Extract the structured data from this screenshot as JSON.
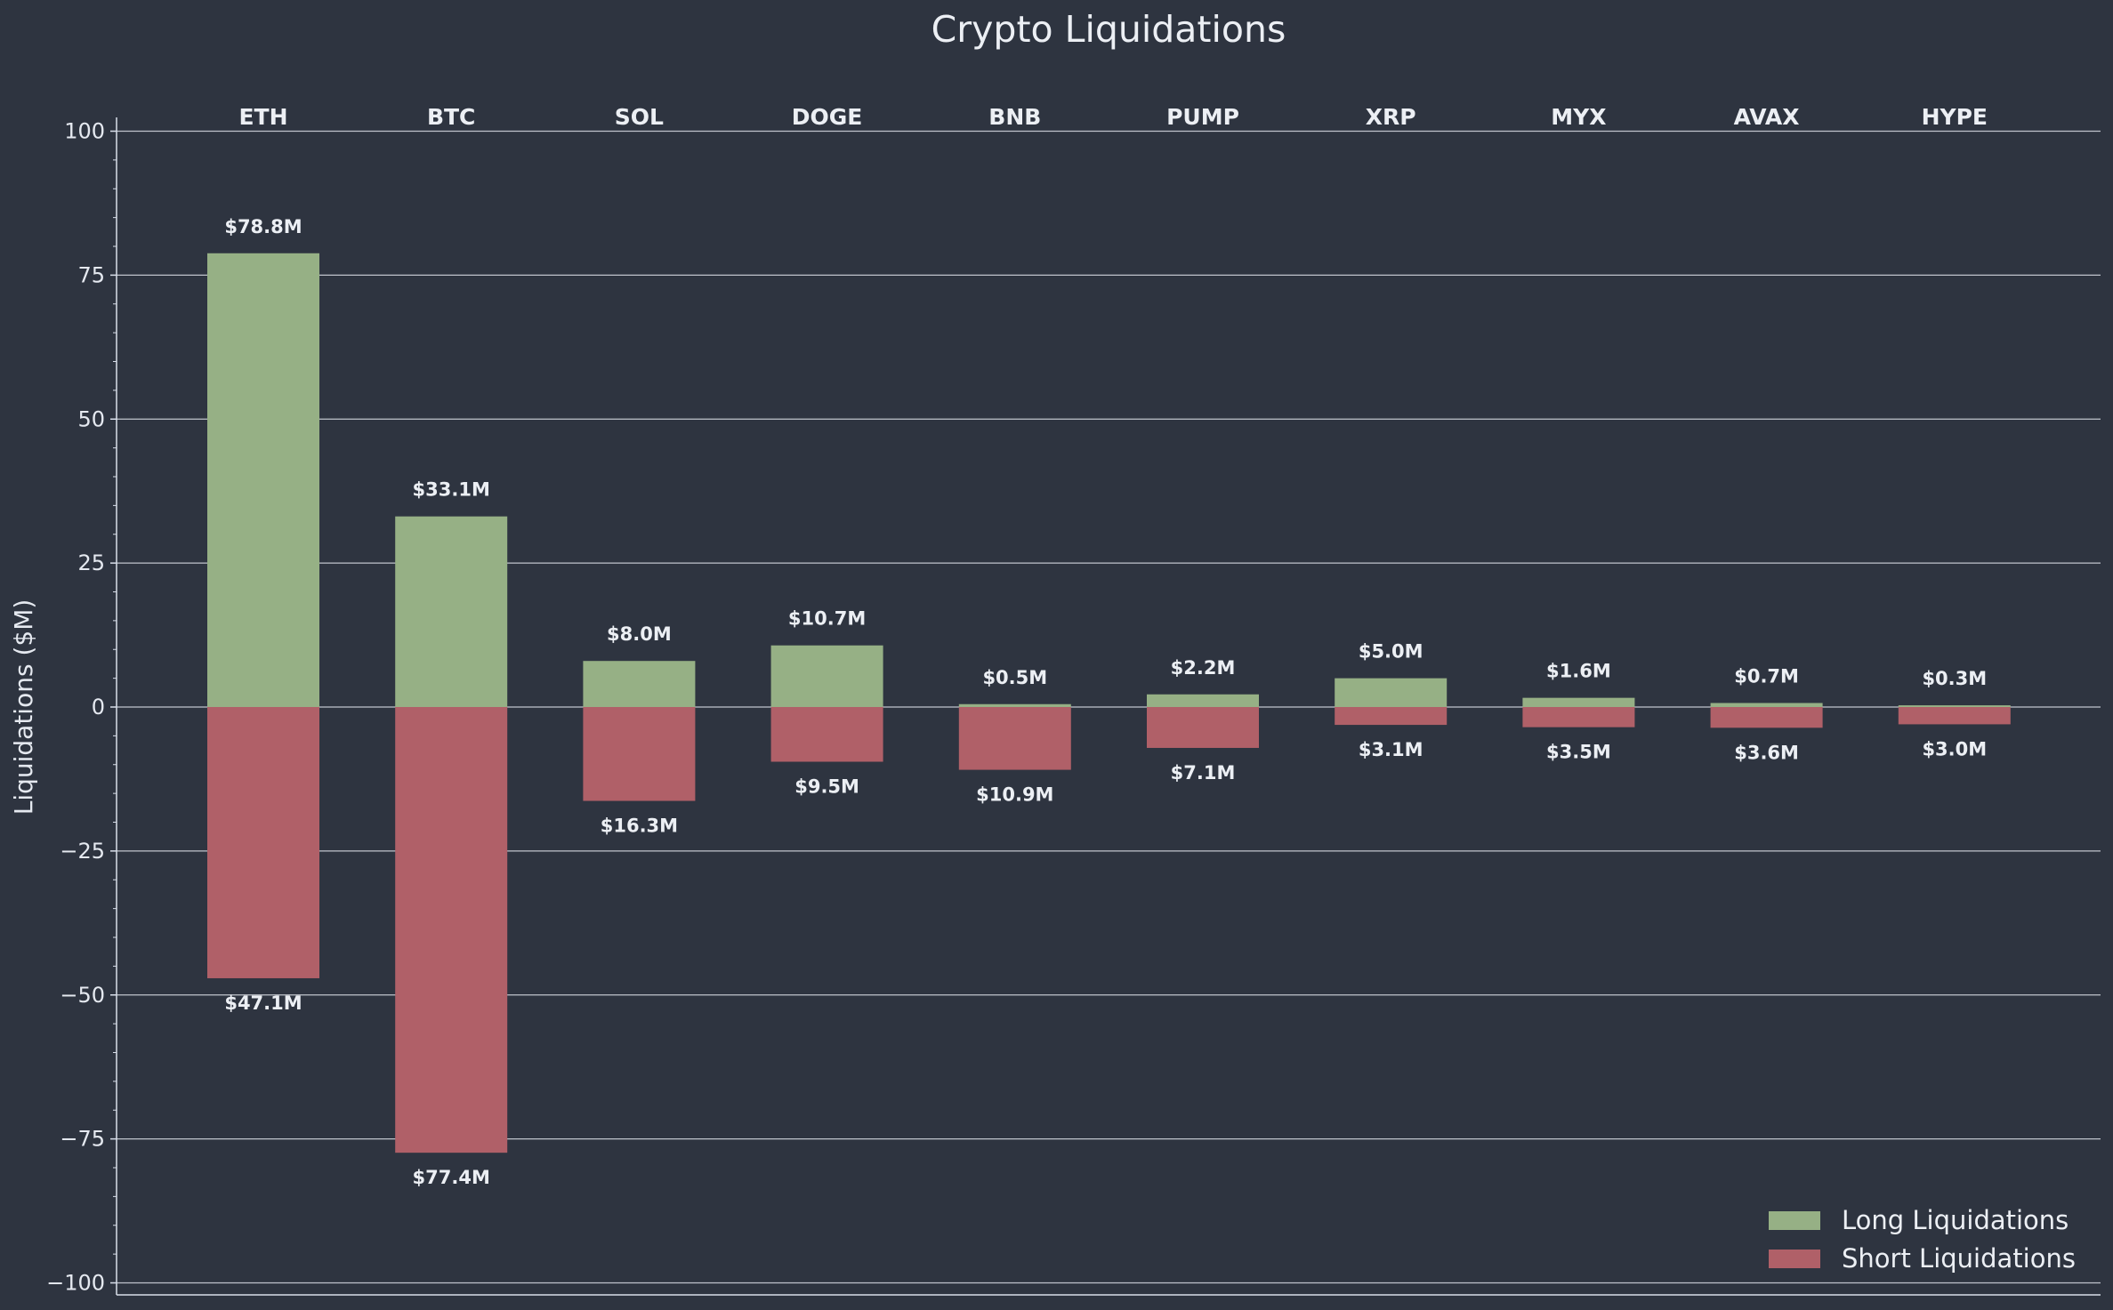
{
  "chart_data": {
    "type": "bar",
    "title": "Crypto Liquidations",
    "xlabel": "",
    "ylabel": "Liquidations ($M)",
    "ylim": [
      -102.5,
      102.5
    ],
    "yticks": [
      100,
      75,
      50,
      25,
      0,
      -25,
      -50,
      -75,
      -100
    ],
    "ytick_labels": [
      "100",
      "75",
      "50",
      "25",
      "0",
      "−25",
      "−50",
      "−75",
      "−100"
    ],
    "grid": true,
    "legend_position": "bottom-right",
    "categories": [
      "ETH",
      "BTC",
      "SOL",
      "DOGE",
      "BNB",
      "PUMP",
      "XRP",
      "MYX",
      "AVAX",
      "HYPE"
    ],
    "series": [
      {
        "name": "Long Liquidations",
        "color": "#96b085",
        "values": [
          78.8,
          33.1,
          8.0,
          10.7,
          0.5,
          2.2,
          5.0,
          1.6,
          0.7,
          0.3
        ],
        "labels": [
          "$78.8M",
          "$33.1M",
          "$8.0M",
          "$10.7M",
          "$0.5M",
          "$2.2M",
          "$5.0M",
          "$1.6M",
          "$0.7M",
          "$0.3M"
        ]
      },
      {
        "name": "Short Liquidations",
        "color": "#b06068",
        "values": [
          -47.1,
          -77.4,
          -16.3,
          -9.5,
          -10.9,
          -7.1,
          -3.1,
          -3.5,
          -3.6,
          -3.0
        ],
        "labels": [
          "$47.1M",
          "$77.4M",
          "$16.3M",
          "$9.5M",
          "$10.9M",
          "$7.1M",
          "$3.1M",
          "$3.5M",
          "$3.6M",
          "$3.0M"
        ]
      }
    ],
    "colors": {
      "background": "#2e3440",
      "grid": "#c0c4cc",
      "axis": "#d8dee9",
      "text": "#eceff4"
    }
  }
}
